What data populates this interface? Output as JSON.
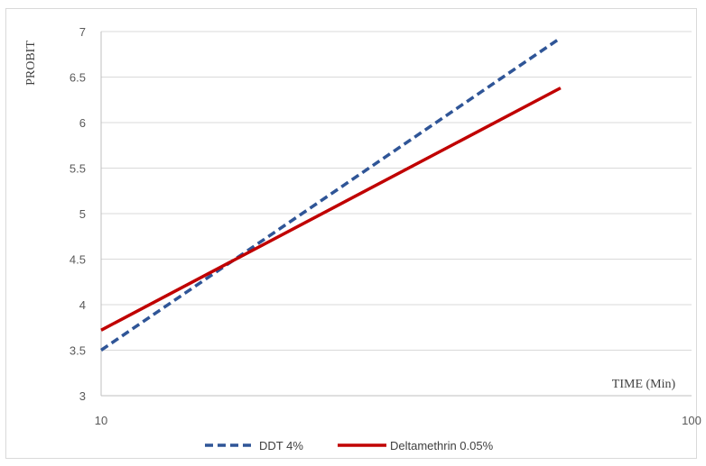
{
  "chart_data": {
    "type": "line",
    "xlabel": "TIME (Min)",
    "ylabel": "PROBIT",
    "x_scale": "log",
    "xlim": [
      10,
      100
    ],
    "ylim": [
      3,
      7
    ],
    "x_ticks": [
      "10",
      "100"
    ],
    "y_ticks": [
      "3",
      "3.5",
      "4",
      "4.5",
      "5",
      "5.5",
      "6",
      "6.5",
      "7"
    ],
    "grid": "horizontal",
    "legend_position": "bottom",
    "series": [
      {
        "name": "DDT 4%",
        "color": "#2f5597",
        "style": "dashed",
        "points": [
          [
            10,
            3.5
          ],
          [
            60,
            6.93
          ]
        ]
      },
      {
        "name": "Deltamethrin 0.05%",
        "color": "#c00000",
        "style": "solid",
        "points": [
          [
            10,
            3.72
          ],
          [
            60,
            6.38
          ]
        ]
      }
    ]
  }
}
